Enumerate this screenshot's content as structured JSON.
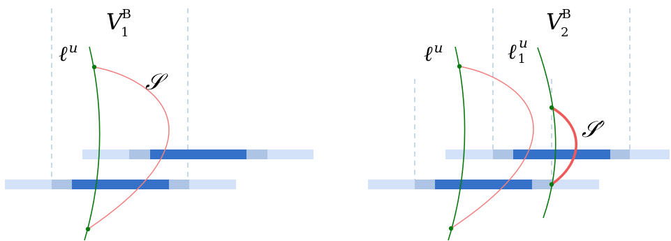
{
  "colors": {
    "dashed_guide": "#a9c4e0",
    "bar_light": "#d3e2f8",
    "bar_mid": "#aec4e4",
    "bar_dark": "#3570c9",
    "curve_green": "#0a7a10",
    "point_green": "#0a7a10",
    "curve_red": "#f08080",
    "curve_red_bold": "#ee5a5a"
  },
  "left_panel": {
    "region_label": {
      "base": "V",
      "sub": "1",
      "sup": "B"
    },
    "line_label": {
      "base": "ℓ",
      "sup": "u"
    },
    "curve_label": "𝒮"
  },
  "right_panel": {
    "region_label": {
      "base": "V",
      "sub": "2",
      "sup": "B"
    },
    "line_label": {
      "base": "ℓ",
      "sup": "u"
    },
    "line2_label": {
      "base": "ℓ",
      "sub": "1",
      "sup": "u"
    },
    "curve_label": "𝒮′"
  }
}
